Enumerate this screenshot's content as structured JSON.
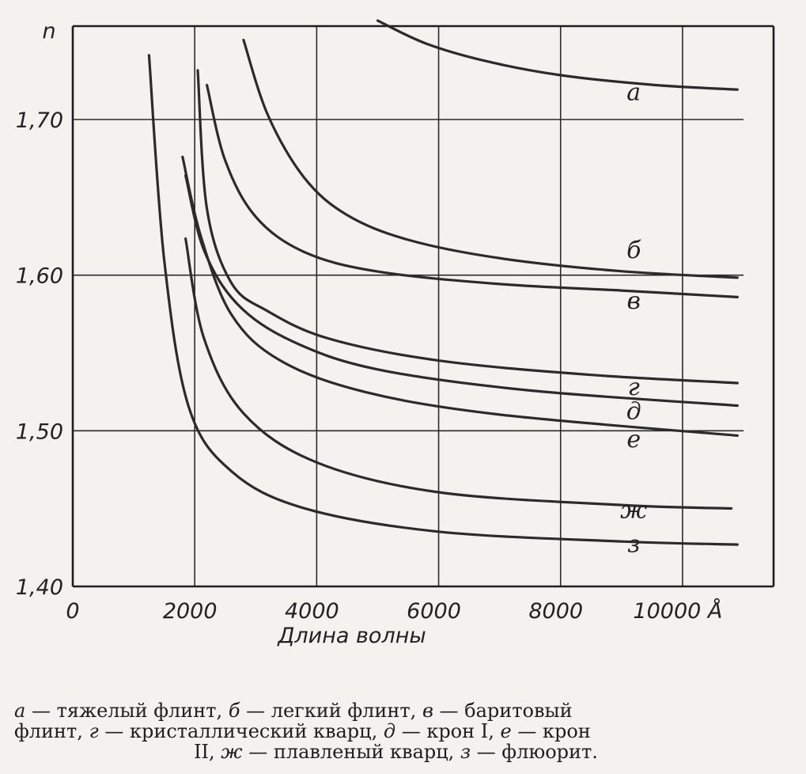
{
  "chart_data": {
    "type": "line",
    "title": "",
    "xlabel": "Длина волны",
    "ylabel": "n",
    "xlim": [
      0,
      11000
    ],
    "ylim": [
      1.4,
      1.76
    ],
    "grid": true,
    "x_unit": "Å",
    "x_ticks": [
      0,
      2000,
      4000,
      6000,
      8000,
      10000
    ],
    "x_tick_labels": [
      "0",
      "2000",
      "4000",
      "6000",
      "8000",
      "10000 Å"
    ],
    "y_ticks": [
      1.4,
      1.5,
      1.6,
      1.7
    ],
    "y_tick_labels": [
      "1,40",
      "1,50",
      "1,60",
      "1,70"
    ],
    "series": [
      {
        "name": "а",
        "points": [
          [
            5000,
            1.7635
          ],
          [
            5800,
            1.7487
          ],
          [
            6800,
            1.7373
          ],
          [
            8000,
            1.7285
          ],
          [
            9500,
            1.7223
          ],
          [
            10900,
            1.7192
          ]
        ]
      },
      {
        "name": "б",
        "points": [
          [
            2800,
            1.7511
          ],
          [
            3200,
            1.7028
          ],
          [
            3800,
            1.6624
          ],
          [
            4500,
            1.6386
          ],
          [
            5500,
            1.6227
          ],
          [
            7000,
            1.6109
          ],
          [
            9000,
            1.6025
          ],
          [
            10900,
            1.5984
          ]
        ]
      },
      {
        "name": "в",
        "points": [
          [
            2200,
            1.7221
          ],
          [
            2500,
            1.6737
          ],
          [
            3000,
            1.6375
          ],
          [
            3800,
            1.6148
          ],
          [
            5000,
            1.6023
          ],
          [
            7000,
            1.5943
          ],
          [
            9000,
            1.5901
          ],
          [
            10900,
            1.5859
          ]
        ]
      },
      {
        "name": "г",
        "points": [
          [
            2050,
            1.7315
          ],
          [
            2200,
            1.6427
          ],
          [
            2600,
            1.5951
          ],
          [
            3200,
            1.5768
          ],
          [
            4200,
            1.5592
          ],
          [
            6000,
            1.5451
          ],
          [
            8500,
            1.5359
          ],
          [
            10900,
            1.5307
          ]
        ]
      },
      {
        "name": "д",
        "points": [
          [
            1850,
            1.664
          ],
          [
            2150,
            1.6163
          ],
          [
            2700,
            1.5814
          ],
          [
            3600,
            1.5575
          ],
          [
            5000,
            1.5394
          ],
          [
            7500,
            1.5259
          ],
          [
            10900,
            1.5162
          ]
        ]
      },
      {
        "name": "е",
        "points": [
          [
            1800,
            1.676
          ],
          [
            2100,
            1.625
          ],
          [
            2600,
            1.5748
          ],
          [
            3400,
            1.5452
          ],
          [
            4800,
            1.5249
          ],
          [
            7000,
            1.5104
          ],
          [
            10900,
            1.4969
          ]
        ]
      },
      {
        "name": "ж",
        "points": [
          [
            1850,
            1.6235
          ],
          [
            2150,
            1.5597
          ],
          [
            2800,
            1.5112
          ],
          [
            4000,
            1.4797
          ],
          [
            6000,
            1.4605
          ],
          [
            9000,
            1.4523
          ],
          [
            10800,
            1.4501
          ]
        ]
      },
      {
        "name": "з",
        "points": [
          [
            1250,
            1.7413
          ],
          [
            1500,
            1.6097
          ],
          [
            1900,
            1.5155
          ],
          [
            2600,
            1.4741
          ],
          [
            3800,
            1.4502
          ],
          [
            6000,
            1.4352
          ],
          [
            9000,
            1.4289
          ],
          [
            10900,
            1.4269
          ]
        ]
      }
    ],
    "curve_labels": [
      {
        "text": "а",
        "x": 9200,
        "y": 1.7125
      },
      {
        "text": "б",
        "x": 9200,
        "y": 1.611
      },
      {
        "text": "в",
        "x": 9200,
        "y": 1.5785
      },
      {
        "text": "г",
        "x": 9200,
        "y": 1.523
      },
      {
        "text": "д",
        "x": 9200,
        "y": 1.5075
      },
      {
        "text": "е",
        "x": 9200,
        "y": 1.4895
      },
      {
        "text": "ж",
        "x": 9200,
        "y": 1.444
      },
      {
        "text": "з",
        "x": 9200,
        "y": 1.422
      }
    ]
  },
  "caption": {
    "line1": [
      {
        "label": "а",
        "text": " — тяжелый флинт, "
      },
      {
        "label": "б",
        "text": " — легкий флинт, "
      },
      {
        "label": "в",
        "text": " — баритовый"
      }
    ],
    "line2": [
      {
        "label": "",
        "text": "флинт, "
      },
      {
        "label": "г",
        "text": " — кристаллический кварц, "
      },
      {
        "label": "д",
        "text": " — крон I, "
      },
      {
        "label": "е",
        "text": " — крон"
      }
    ],
    "line3": [
      {
        "label": "",
        "text": "II, "
      },
      {
        "label": "ж",
        "text": " — плавленый кварц, "
      },
      {
        "label": "з",
        "text": " — флюорит."
      }
    ]
  }
}
